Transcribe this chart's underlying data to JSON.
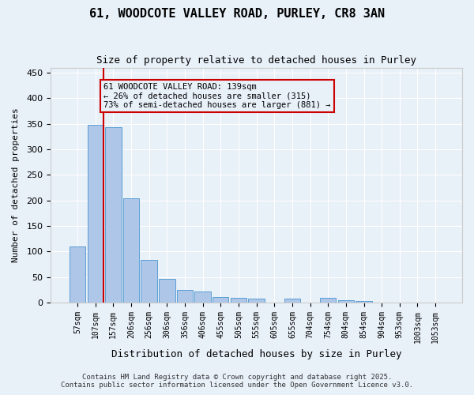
{
  "title": "61, WOODCOTE VALLEY ROAD, PURLEY, CR8 3AN",
  "subtitle": "Size of property relative to detached houses in Purley",
  "xlabel": "Distribution of detached houses by size in Purley",
  "ylabel": "Number of detached properties",
  "categories": [
    "57sqm",
    "107sqm",
    "157sqm",
    "206sqm",
    "256sqm",
    "306sqm",
    "356sqm",
    "406sqm",
    "455sqm",
    "505sqm",
    "555sqm",
    "605sqm",
    "655sqm",
    "704sqm",
    "754sqm",
    "804sqm",
    "854sqm",
    "904sqm",
    "953sqm",
    "1003sqm",
    "1053sqm"
  ],
  "values": [
    110,
    348,
    343,
    204,
    84,
    46,
    25,
    21,
    11,
    9,
    7,
    0,
    8,
    0,
    9,
    5,
    3,
    0,
    0,
    0,
    0
  ],
  "bar_color": "#aec6e8",
  "bar_edge_color": "#5a9fd4",
  "background_color": "#e8f0f8",
  "grid_color": "#ffffff",
  "vline_x": 1,
  "vline_color": "#cc0000",
  "annotation_text": "61 WOODCOTE VALLEY ROAD: 139sqm\n← 26% of detached houses are smaller (315)\n73% of semi-detached houses are larger (881) →",
  "annotation_box_color": "#cc0000",
  "ylim": [
    0,
    460
  ],
  "yticks": [
    0,
    50,
    100,
    150,
    200,
    250,
    300,
    350,
    400,
    450
  ],
  "footer1": "Contains HM Land Registry data © Crown copyright and database right 2025.",
  "footer2": "Contains public sector information licensed under the Open Government Licence v3.0."
}
